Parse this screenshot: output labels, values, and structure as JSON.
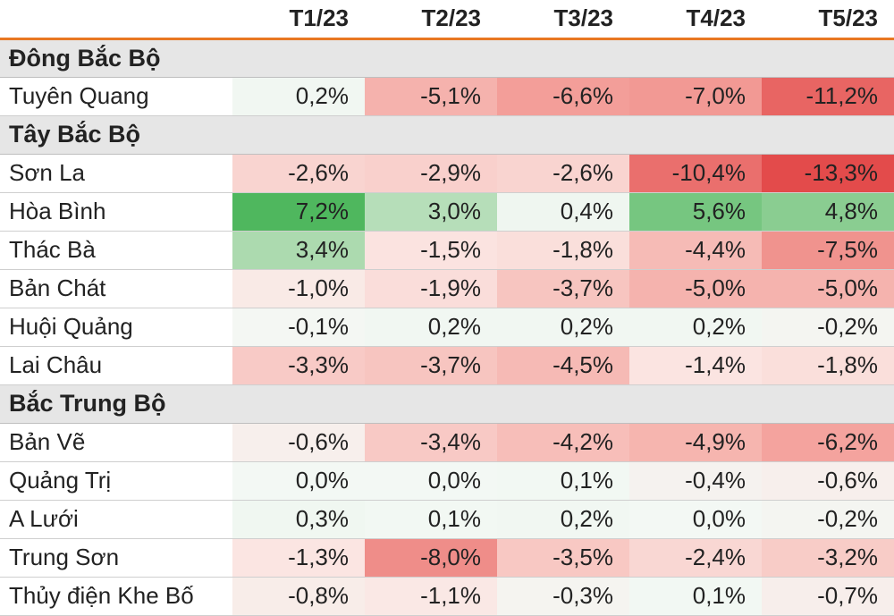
{
  "table": {
    "type": "heatmap-table",
    "columns": [
      "",
      "T1/23",
      "T2/23",
      "T3/23",
      "T4/23",
      "T5/23"
    ],
    "value_min": -13.3,
    "value_max": 7.2,
    "color_scale": {
      "neg_strong": "#e34b4b",
      "neg_mid": "#f4a6a0",
      "neg_light": "#fbe5e2",
      "neutral": "#f3f8f4",
      "pos_light": "#e8f3e9",
      "pos_mid": "#a7d8aa",
      "pos_strong": "#4fb75e"
    },
    "header_rule_color": "#e87722",
    "group_bg": "#e6e6e6",
    "row_border": "#cfcfcf",
    "font_size": 26,
    "groups": [
      {
        "label": "Đông Bắc Bộ",
        "rows": [
          {
            "name": "Tuyên Quang",
            "values": [
              0.2,
              -5.1,
              -6.6,
              -7.0,
              -11.2
            ]
          }
        ]
      },
      {
        "label": "Tây Bắc Bộ",
        "rows": [
          {
            "name": "Sơn La",
            "values": [
              -2.6,
              -2.9,
              -2.6,
              -10.4,
              -13.3
            ]
          },
          {
            "name": "Hòa Bình",
            "values": [
              7.2,
              3.0,
              0.4,
              5.6,
              4.8
            ]
          },
          {
            "name": "Thác Bà",
            "values": [
              3.4,
              -1.5,
              -1.8,
              -4.4,
              -7.5
            ]
          },
          {
            "name": "Bản Chát",
            "values": [
              -1.0,
              -1.9,
              -3.7,
              -5.0,
              -5.0
            ]
          },
          {
            "name": "Huội Quảng",
            "values": [
              -0.1,
              0.2,
              0.2,
              0.2,
              -0.2
            ]
          },
          {
            "name": "Lai Châu",
            "values": [
              -3.3,
              -3.7,
              -4.5,
              -1.4,
              -1.8
            ]
          }
        ]
      },
      {
        "label": "Bắc Trung Bộ",
        "rows": [
          {
            "name": "Bản Vẽ",
            "values": [
              -0.6,
              -3.4,
              -4.2,
              -4.9,
              -6.2
            ]
          },
          {
            "name": "Quảng Trị",
            "values": [
              0.0,
              0.0,
              0.1,
              -0.4,
              -0.6
            ]
          },
          {
            "name": "A Lưới",
            "values": [
              0.3,
              0.1,
              0.2,
              0.0,
              -0.2
            ]
          },
          {
            "name": "Trung Sơn",
            "values": [
              -1.3,
              -8.0,
              -3.5,
              -2.4,
              -3.2
            ]
          },
          {
            "name": "Thủy điện Khe Bố",
            "values": [
              -0.8,
              -1.1,
              -0.3,
              0.1,
              -0.7
            ]
          }
        ]
      }
    ]
  }
}
